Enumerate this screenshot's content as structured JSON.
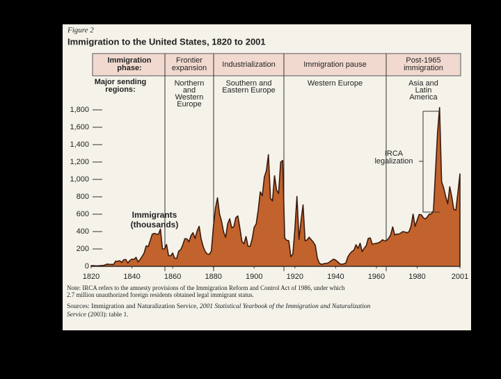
{
  "chart_data": {
    "type": "area",
    "figure_label": "Figure 2",
    "title": "Immigration to the United States, 1820 to 2001",
    "phase_header": {
      "label": [
        "Immigration",
        "phase:"
      ],
      "phases": [
        [
          "Frontier",
          "expansion"
        ],
        [
          "Industrialization"
        ],
        [
          "Immigration pause"
        ],
        [
          "Post-1965",
          "immigration"
        ]
      ]
    },
    "region_header": {
      "label": [
        "Major sending",
        "regions:"
      ],
      "regions": [
        [
          "Northern",
          "and",
          "Western",
          "Europe"
        ],
        [
          "Southern and",
          "Eastern Europe"
        ],
        [
          "Western Europe"
        ],
        [
          "Asia and",
          "Latin",
          "America"
        ]
      ]
    },
    "series_label": [
      "Immigrants",
      "(thousands)"
    ],
    "annotation": [
      "IRCA",
      "legalization"
    ],
    "color": "#c2622c",
    "x": [
      1820,
      1821,
      1822,
      1823,
      1824,
      1825,
      1826,
      1827,
      1828,
      1829,
      1830,
      1831,
      1832,
      1833,
      1834,
      1835,
      1836,
      1837,
      1838,
      1839,
      1840,
      1841,
      1842,
      1843,
      1844,
      1845,
      1846,
      1847,
      1848,
      1849,
      1850,
      1851,
      1852,
      1853,
      1854,
      1855,
      1856,
      1857,
      1858,
      1859,
      1860,
      1861,
      1862,
      1863,
      1864,
      1865,
      1866,
      1867,
      1868,
      1869,
      1870,
      1871,
      1872,
      1873,
      1874,
      1875,
      1876,
      1877,
      1878,
      1879,
      1880,
      1881,
      1882,
      1883,
      1884,
      1885,
      1886,
      1887,
      1888,
      1889,
      1890,
      1891,
      1892,
      1893,
      1894,
      1895,
      1896,
      1897,
      1898,
      1899,
      1900,
      1901,
      1902,
      1903,
      1904,
      1905,
      1906,
      1907,
      1908,
      1909,
      1910,
      1911,
      1912,
      1913,
      1914,
      1915,
      1916,
      1917,
      1918,
      1919,
      1920,
      1921,
      1922,
      1923,
      1924,
      1925,
      1926,
      1927,
      1928,
      1929,
      1930,
      1931,
      1932,
      1933,
      1934,
      1935,
      1936,
      1937,
      1938,
      1939,
      1940,
      1941,
      1942,
      1943,
      1944,
      1945,
      1946,
      1947,
      1948,
      1949,
      1950,
      1951,
      1952,
      1953,
      1954,
      1955,
      1956,
      1957,
      1958,
      1959,
      1960,
      1961,
      1962,
      1963,
      1964,
      1965,
      1966,
      1967,
      1968,
      1969,
      1970,
      1971,
      1972,
      1973,
      1974,
      1975,
      1976,
      1977,
      1978,
      1979,
      1980,
      1981,
      1982,
      1983,
      1984,
      1985,
      1986,
      1987,
      1988,
      1989,
      1990,
      1991,
      1992,
      1993,
      1994,
      1995,
      1996,
      1997,
      1998,
      1999,
      2000,
      2001
    ],
    "values": [
      8,
      9,
      7,
      6,
      8,
      10,
      11,
      18,
      27,
      22,
      23,
      22,
      60,
      58,
      65,
      45,
      76,
      79,
      38,
      68,
      84,
      80,
      104,
      52,
      78,
      114,
      154,
      235,
      227,
      297,
      370,
      379,
      372,
      368,
      428,
      200,
      200,
      251,
      123,
      121,
      153,
      92,
      92,
      176,
      193,
      249,
      319,
      316,
      282,
      353,
      387,
      321,
      405,
      460,
      313,
      227,
      170,
      142,
      138,
      178,
      457,
      669,
      789,
      603,
      519,
      395,
      334,
      490,
      547,
      444,
      455,
      560,
      580,
      440,
      286,
      259,
      343,
      231,
      229,
      312,
      449,
      488,
      649,
      857,
      813,
      1026,
      1101,
      1285,
      783,
      752,
      1042,
      879,
      838,
      1198,
      1218,
      327,
      299,
      295,
      111,
      141,
      430,
      805,
      310,
      523,
      707,
      294,
      304,
      335,
      307,
      280,
      242,
      97,
      36,
      23,
      29,
      35,
      36,
      50,
      68,
      83,
      71,
      52,
      29,
      24,
      29,
      38,
      109,
      147,
      171,
      188,
      249,
      206,
      266,
      170,
      208,
      238,
      322,
      327,
      253,
      261,
      265,
      271,
      284,
      306,
      292,
      297,
      323,
      362,
      454,
      359,
      373,
      370,
      385,
      400,
      395,
      386,
      399,
      462,
      601,
      460,
      531,
      597,
      594,
      560,
      544,
      570,
      602,
      602,
      643,
      1091,
      1536,
      1827,
      974,
      904,
      804,
      720,
      916,
      798,
      654,
      647,
      850,
      1064
    ],
    "xlim": [
      1820,
      2001
    ],
    "xticks": [
      1820,
      1840,
      1860,
      1880,
      1900,
      1920,
      1940,
      1960,
      1980,
      2001
    ],
    "ylim": [
      0,
      1800
    ],
    "yticks": [
      0,
      200,
      400,
      600,
      800,
      {
        "value": 1000,
        "label": "1,000"
      },
      {
        "value": 1200,
        "label": "1,200"
      },
      {
        "value": 1400,
        "label": "1,400"
      },
      {
        "value": 1600,
        "label": "1,600"
      },
      {
        "value": 1800,
        "label": "1,800"
      }
    ],
    "note": [
      "Note: IRCA refers to the amnesty provisions of the Immigration Reform and Control Act of 1986, under which",
      "2.7 million unauthorized foreign residents obtained legal immigrant status."
    ],
    "source": [
      "Sources: Immigration and Naturalization Service, ",
      "2001 Statistical Yearbook of the Immigration and Naturalization",
      "Service",
      " (2003): table 1."
    ]
  }
}
